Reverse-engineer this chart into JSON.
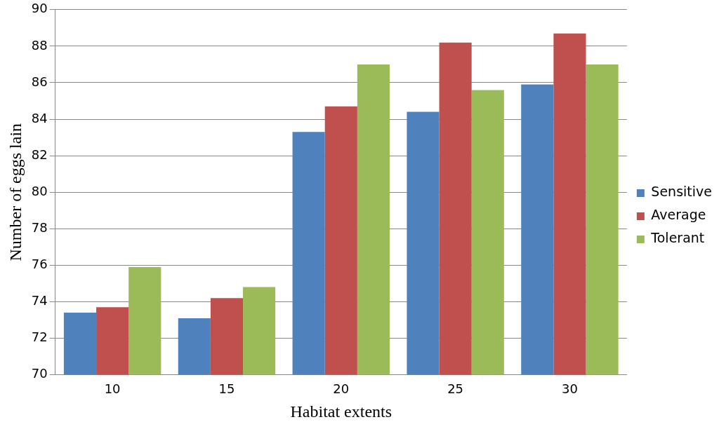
{
  "chart_data": {
    "type": "bar",
    "xlabel": "Habitat extents",
    "ylabel": "Number of eggs lain",
    "categories": [
      "10",
      "15",
      "20",
      "25",
      "30"
    ],
    "series": [
      {
        "name": "Sensitive",
        "color": "#4f81bd",
        "values": [
          73.4,
          73.1,
          83.3,
          84.4,
          85.9
        ]
      },
      {
        "name": "Average",
        "color": "#c0504d",
        "values": [
          73.7,
          74.2,
          84.7,
          88.2,
          88.7
        ]
      },
      {
        "name": "Tolerant",
        "color": "#9bbb59",
        "values": [
          75.9,
          74.8,
          87.0,
          85.6,
          87.0
        ]
      }
    ],
    "ylim": [
      70,
      90
    ],
    "yticks": [
      70,
      72,
      74,
      76,
      78,
      80,
      82,
      84,
      86,
      88,
      90
    ],
    "grid": "y",
    "legend": "right"
  }
}
